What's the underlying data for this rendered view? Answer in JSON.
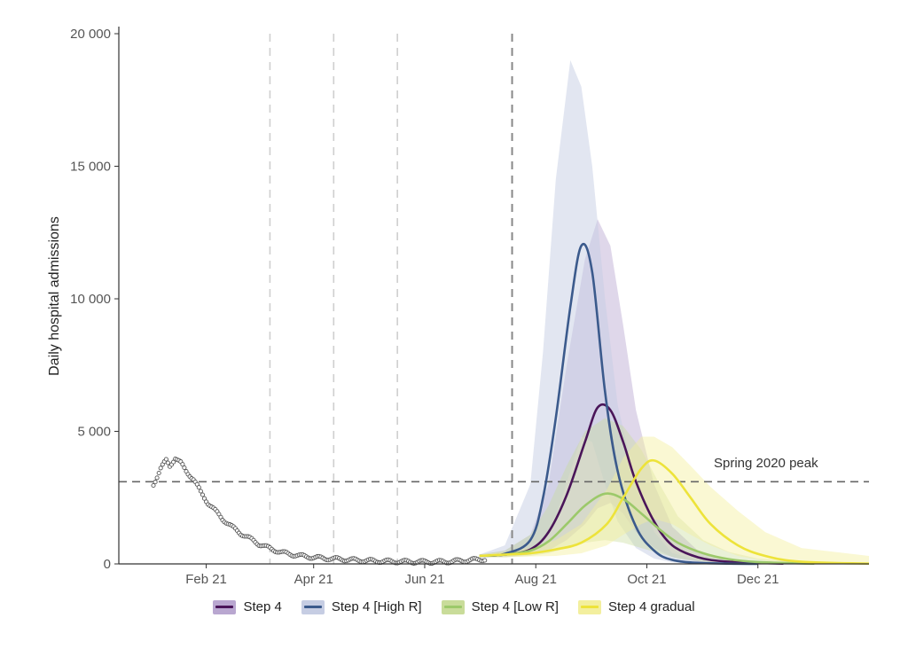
{
  "chart_data": {
    "type": "line",
    "ylabel": "Daily hospital admissions",
    "xlabel": "",
    "ylim": [
      0,
      20000
    ],
    "xlim": [
      "2020-12-15",
      "2022-01-31"
    ],
    "yticks": [
      0,
      5000,
      10000,
      15000,
      20000
    ],
    "ytick_labels": [
      "0",
      "5 000",
      "10 000",
      "15 000",
      "20 000"
    ],
    "xticks": [
      "2021-02-01",
      "2021-04-01",
      "2021-06-01",
      "2021-08-01",
      "2021-10-01",
      "2021-12-01"
    ],
    "xtick_labels": [
      "Feb 21",
      "Apr 21",
      "Jun 21",
      "Aug 21",
      "Oct 21",
      "Dec 21"
    ],
    "vlines": [
      "2021-03-08",
      "2021-04-12",
      "2021-05-17",
      "2021-07-19"
    ],
    "hline": {
      "value": 3100,
      "label": "Spring 2020 peak"
    },
    "legend_position": "bottom",
    "observed": {
      "x": [
        "2021-01-03",
        "2021-01-07",
        "2021-01-10",
        "2021-01-12",
        "2021-01-15",
        "2021-01-18",
        "2021-01-21",
        "2021-01-25",
        "2021-01-29",
        "2021-02-02",
        "2021-02-06",
        "2021-02-10",
        "2021-02-15",
        "2021-02-20",
        "2021-02-25",
        "2021-03-02",
        "2021-03-08",
        "2021-03-15",
        "2021-03-25",
        "2021-04-05",
        "2021-04-15",
        "2021-04-25",
        "2021-05-05",
        "2021-05-15",
        "2021-05-25",
        "2021-06-05",
        "2021-06-15",
        "2021-06-25",
        "2021-07-05"
      ],
      "y": [
        3000,
        3600,
        3900,
        3700,
        4000,
        3800,
        3500,
        3200,
        2700,
        2300,
        2000,
        1700,
        1400,
        1150,
        950,
        750,
        580,
        420,
        300,
        220,
        180,
        140,
        110,
        90,
        80,
        75,
        90,
        140,
        180
      ]
    },
    "series": [
      {
        "name": "Step 4",
        "color": "#4a1559",
        "band_color": "#b9a7d0",
        "band_opacity": 0.45,
        "x": [
          "2021-07-01",
          "2021-07-15",
          "2021-07-29",
          "2021-08-08",
          "2021-08-18",
          "2021-08-28",
          "2021-09-04",
          "2021-09-11",
          "2021-09-18",
          "2021-09-25",
          "2021-10-05",
          "2021-10-15",
          "2021-10-29",
          "2021-11-15",
          "2021-12-15"
        ],
        "y": [
          300,
          350,
          550,
          1200,
          2600,
          4600,
          5900,
          5800,
          4600,
          3100,
          1600,
          700,
          250,
          80,
          10
        ],
        "lower": [
          250,
          250,
          350,
          500,
          900,
          1500,
          2100,
          2300,
          1900,
          1200,
          600,
          250,
          80,
          20,
          0
        ],
        "upper": [
          350,
          500,
          1100,
          3000,
          7500,
          11500,
          13000,
          12000,
          9000,
          5800,
          3000,
          1400,
          500,
          150,
          20
        ]
      },
      {
        "name": "Step 4 [High R]",
        "color": "#3b5a8c",
        "band_color": "#c6cde3",
        "band_opacity": 0.5,
        "x": [
          "2021-07-01",
          "2021-07-15",
          "2021-07-29",
          "2021-08-05",
          "2021-08-12",
          "2021-08-20",
          "2021-08-26",
          "2021-09-01",
          "2021-09-08",
          "2021-09-15",
          "2021-09-25",
          "2021-10-05",
          "2021-10-15",
          "2021-11-01",
          "2021-12-01"
        ],
        "y": [
          300,
          380,
          900,
          2500,
          5500,
          9700,
          12000,
          11000,
          6500,
          3500,
          1400,
          500,
          150,
          30,
          0
        ],
        "lower": [
          250,
          280,
          450,
          900,
          1800,
          3500,
          4800,
          4600,
          3000,
          1600,
          600,
          200,
          60,
          10,
          0
        ],
        "upper": [
          350,
          700,
          3000,
          8000,
          14500,
          19000,
          18000,
          15000,
          10000,
          6000,
          3000,
          1200,
          400,
          100,
          10
        ]
      },
      {
        "name": "Step 4 [Low R]",
        "color": "#9cc96a",
        "band_color": "#c9dc9a",
        "band_opacity": 0.4,
        "x": [
          "2021-07-01",
          "2021-07-15",
          "2021-07-29",
          "2021-08-08",
          "2021-08-18",
          "2021-08-28",
          "2021-09-08",
          "2021-09-18",
          "2021-09-28",
          "2021-10-08",
          "2021-10-18",
          "2021-11-01",
          "2021-11-15",
          "2021-12-01",
          "2022-01-01"
        ],
        "y": [
          300,
          350,
          500,
          850,
          1500,
          2200,
          2650,
          2450,
          1900,
          1300,
          800,
          400,
          180,
          70,
          10
        ],
        "lower": [
          250,
          250,
          300,
          400,
          600,
          800,
          900,
          800,
          600,
          400,
          200,
          80,
          40,
          10,
          0
        ],
        "upper": [
          350,
          500,
          1100,
          2200,
          3700,
          5000,
          5500,
          5200,
          4300,
          3000,
          1800,
          900,
          450,
          200,
          30
        ]
      },
      {
        "name": "Step 4 gradual",
        "color": "#ede33a",
        "band_color": "#f3ef9e",
        "band_opacity": 0.45,
        "x": [
          "2021-07-01",
          "2021-07-15",
          "2021-07-29",
          "2021-08-12",
          "2021-08-26",
          "2021-09-09",
          "2021-09-18",
          "2021-09-28",
          "2021-10-05",
          "2021-10-15",
          "2021-10-25",
          "2021-11-05",
          "2021-11-20",
          "2021-12-05",
          "2021-12-25",
          "2022-01-31"
        ],
        "y": [
          300,
          350,
          400,
          550,
          800,
          1500,
          2500,
          3600,
          3900,
          3400,
          2500,
          1500,
          700,
          300,
          80,
          10
        ],
        "lower": [
          250,
          250,
          280,
          300,
          400,
          700,
          1100,
          1500,
          1700,
          1500,
          1100,
          700,
          300,
          120,
          30,
          0
        ],
        "upper": [
          350,
          450,
          600,
          900,
          1500,
          2800,
          4000,
          4800,
          4800,
          4400,
          3700,
          2900,
          2000,
          1200,
          600,
          300
        ]
      }
    ]
  }
}
